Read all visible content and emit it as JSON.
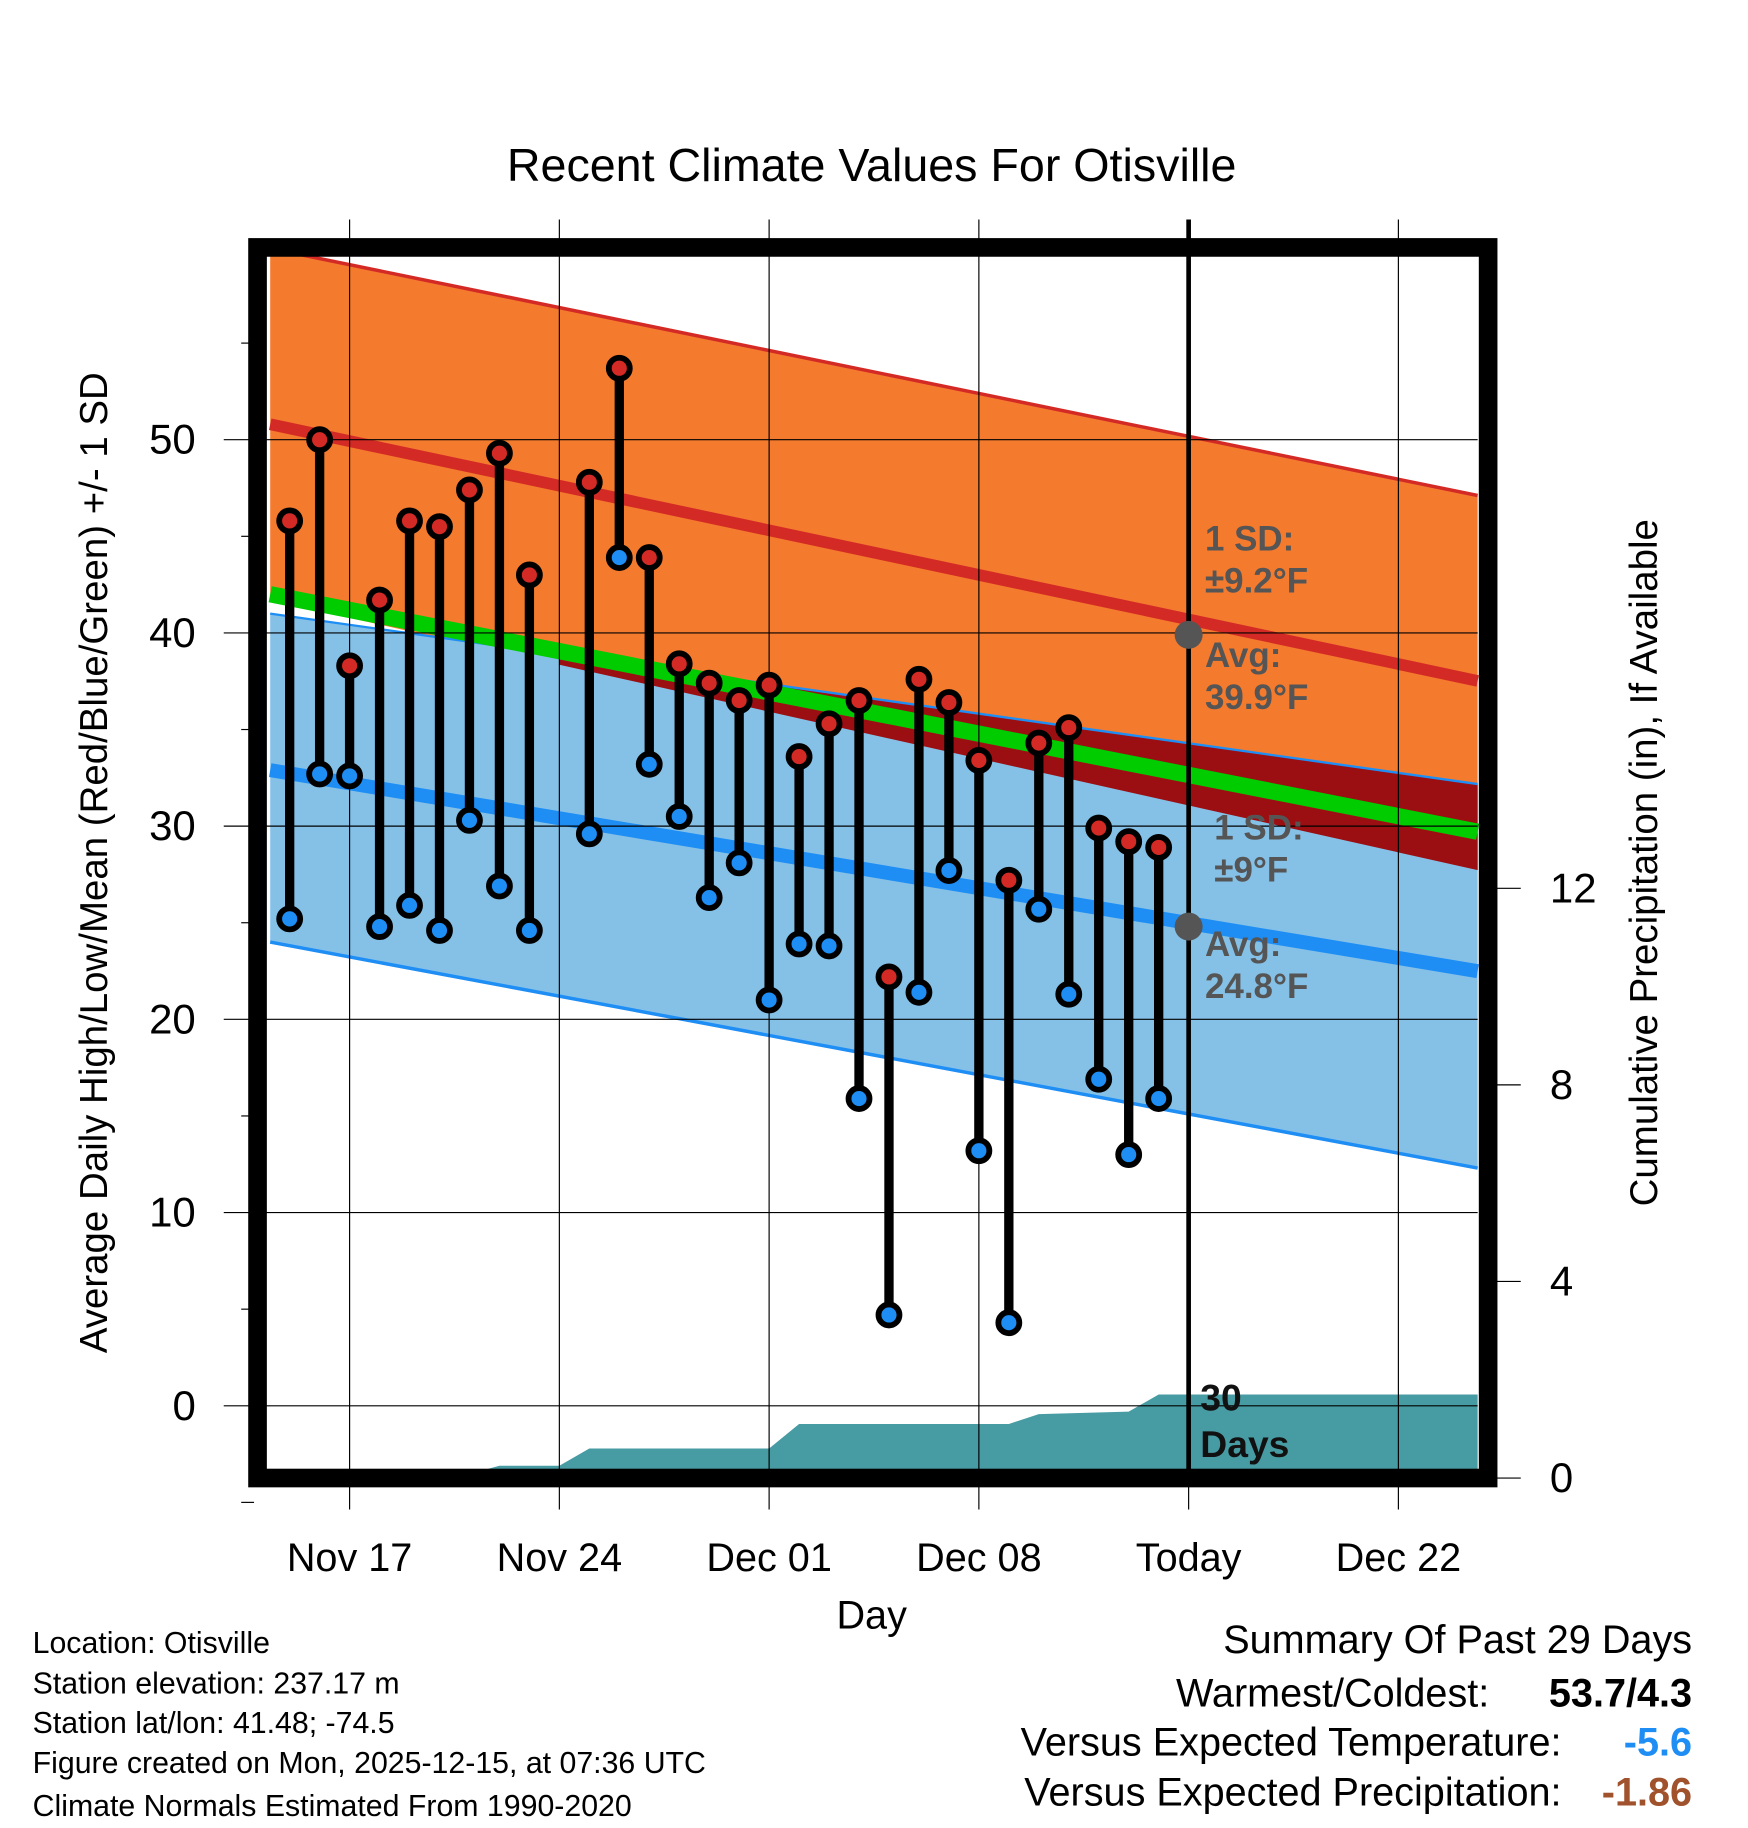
{
  "chart_data": {
    "type": "line",
    "title": "Recent Climate Values For Otisville",
    "xlabel": "Day",
    "ylabel": "Average Daily High/Low/Mean (Red/Blue/Green) +/- 1 SD",
    "y2label": "Cumulative Precipitation (in), If Available",
    "ylim": [
      -3.7,
      60
    ],
    "y2lim": [
      0,
      30
    ],
    "x_start": "Nov 14",
    "x_end": "Dec 25",
    "x_ticks": [
      {
        "day": 3,
        "label": "Nov 17"
      },
      {
        "day": 10,
        "label": "Nov 24"
      },
      {
        "day": 17,
        "label": "Dec 01"
      },
      {
        "day": 24,
        "label": "Dec 08"
      },
      {
        "day": 31,
        "label": "Today"
      },
      {
        "day": 38,
        "label": "Dec 22"
      }
    ],
    "y_ticks": [
      0,
      10,
      20,
      30,
      40,
      50
    ],
    "y2_ticks": [
      0,
      4,
      8,
      12
    ],
    "grid": true,
    "today_day": 31,
    "observations": {
      "days": [
        1,
        2,
        3,
        4,
        5,
        6,
        7,
        8,
        9,
        11,
        12,
        13,
        14,
        15,
        16,
        17,
        18,
        19,
        20,
        21,
        22,
        23,
        24,
        25,
        26,
        27,
        28,
        29,
        30
      ],
      "highs": [
        45.8,
        50.0,
        38.3,
        41.7,
        45.8,
        45.5,
        47.4,
        49.3,
        43.0,
        47.8,
        53.7,
        43.9,
        38.4,
        37.4,
        36.5,
        37.3,
        33.6,
        35.3,
        36.5,
        22.2,
        37.6,
        36.4,
        33.4,
        27.2,
        34.3,
        35.1,
        29.9,
        29.2,
        28.9
      ],
      "lows": [
        25.2,
        32.7,
        32.6,
        24.8,
        25.9,
        24.6,
        30.3,
        26.9,
        24.6,
        29.6,
        43.9,
        33.2,
        30.5,
        26.3,
        28.1,
        21.0,
        23.9,
        23.8,
        15.9,
        4.7,
        21.4,
        27.7,
        13.2,
        4.3,
        25.7,
        21.3,
        16.9,
        13.0,
        15.9
      ]
    },
    "normals": {
      "band_days": [
        0.35,
        41
      ],
      "high_avg": [
        50.8,
        37.4
      ],
      "high_upper": [
        59.9,
        47.0
      ],
      "high_lower": [
        41.7,
        27.6
      ],
      "low_avg": [
        32.9,
        22.4
      ],
      "low_upper": [
        41.0,
        32.1
      ],
      "low_lower": [
        24.0,
        12.2
      ],
      "mean": [
        42.0,
        29.6
      ]
    },
    "precip": {
      "series_name": "Cumulative Precipitation",
      "points": [
        [
          0.35,
          0.05
        ],
        [
          2,
          0.1
        ],
        [
          7.1,
          0.1
        ],
        [
          8,
          0.25
        ],
        [
          10,
          0.25
        ],
        [
          11,
          0.6
        ],
        [
          17,
          0.6
        ],
        [
          18,
          1.1
        ],
        [
          25,
          1.1
        ],
        [
          26,
          1.3
        ],
        [
          29,
          1.35
        ],
        [
          30,
          1.7
        ],
        [
          41,
          1.7
        ]
      ]
    },
    "annotations": {
      "high_sd": "1 SD:",
      "high_sd_val": "±9.2°F",
      "high_avg": "Avg:",
      "high_avg_val": "39.9°F",
      "high_avg_today": 39.9,
      "low_sd": "1 SD:",
      "low_sd_val": "±9°F",
      "low_avg": "Avg:",
      "low_avg_val": "24.8°F",
      "low_avg_today": 24.8,
      "days_line1": "30",
      "days_line2": "Days"
    },
    "colors": {
      "high_band": "#f47a2e",
      "high_line": "#d42a25",
      "high_lower_band": "#9b0f12",
      "low_band": "#85c1e7",
      "low_line": "#1e8ef5",
      "mean": "#00cc00",
      "precip": "#479ba3",
      "high_dot": "#d42a25",
      "low_dot": "#1e8ef5"
    }
  },
  "footer": {
    "location": "Location: Otisville",
    "elevation": "Station elevation: 237.17 m",
    "latlon": "Station lat/lon: 41.48; -74.5",
    "created": "Figure created on Mon, 2025-12-15, at 07:36 UTC",
    "normals": "Climate Normals Estimated From 1990-2020"
  },
  "summary": {
    "title": "Summary Of Past 29 Days",
    "warm_label": "Warmest/Coldest:",
    "warm_value": "53.7/4.3",
    "temp_label": "Versus Expected Temperature:",
    "temp_value": "-5.6",
    "temp_color": "#1e8ef5",
    "precip_label": "Versus Expected Precipitation:",
    "precip_value": "-1.86",
    "precip_color": "#a0522d"
  }
}
